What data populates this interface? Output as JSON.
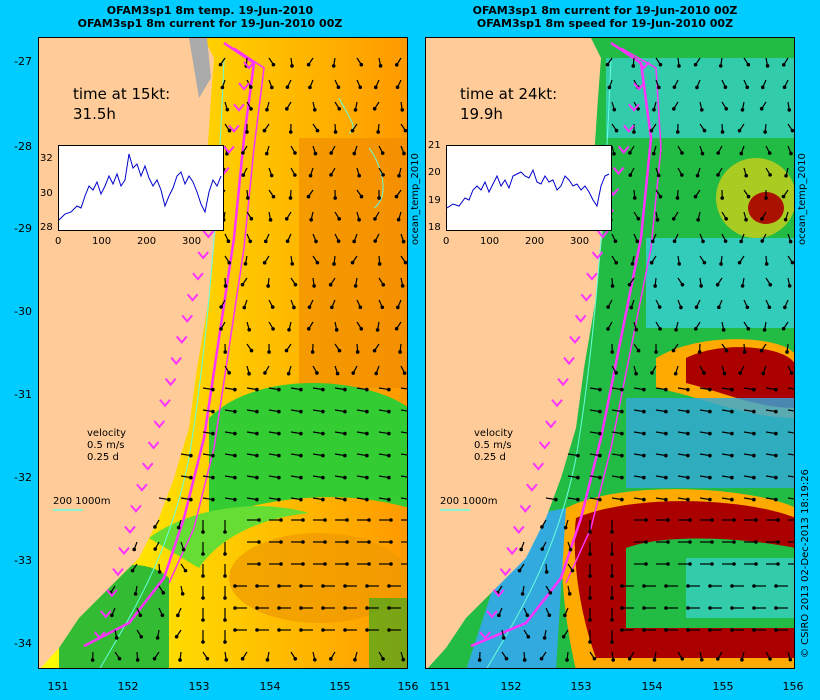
{
  "left_panel": {
    "title_line1": "OFAM3sp1 8m temp. 19-Jun-2010",
    "title_line2": "OFAM3sp1 8m current for 19-Jun-2010 00Z",
    "time_label": "time at 15kt:",
    "time_value": "31.5h",
    "inset_yticks": [
      "32",
      "30",
      "28"
    ],
    "inset_xticks": [
      "0",
      "100",
      "200",
      "300"
    ],
    "side_label": "ocean_temp_2010",
    "velocity_label": "velocity",
    "velocity_speed": "0.5 m/s",
    "velocity_time": "0.25 d",
    "scale_label": "200  1000m"
  },
  "right_panel": {
    "title_line1": "OFAM3sp1 8m current for 19-Jun-2010 00Z",
    "title_line2": "OFAM3sp1 8m speed for 19-Jun-2010 00Z",
    "time_label": "time at 24kt:",
    "time_value": "19.9h",
    "inset_yticks": [
      "21",
      "20",
      "19",
      "18"
    ],
    "inset_xticks": [
      "0",
      "100",
      "200",
      "300"
    ],
    "side_label": "ocean_temp_2010",
    "velocity_label": "velocity",
    "velocity_speed": "0.5 m/s",
    "velocity_time": "0.25 d",
    "scale_label": "200  1000m"
  },
  "axes": {
    "lat_ticks": [
      "-27",
      "-28",
      "-29",
      "-30",
      "-31",
      "-32",
      "-33",
      "-34"
    ],
    "lon_ticks_left": [
      "151",
      "152",
      "153",
      "154",
      "155",
      "156"
    ],
    "lon_ticks_right": [
      "151",
      "152",
      "153",
      "154",
      "155",
      "156"
    ]
  },
  "credit": "© CSIRO 2013  02-Dec-2013 18:19:26",
  "colors": {
    "background": "#00ccff",
    "land": "#ffcc99",
    "route": "#ff33ff",
    "arrow": "#000000",
    "contour": "#66ffdd"
  }
}
